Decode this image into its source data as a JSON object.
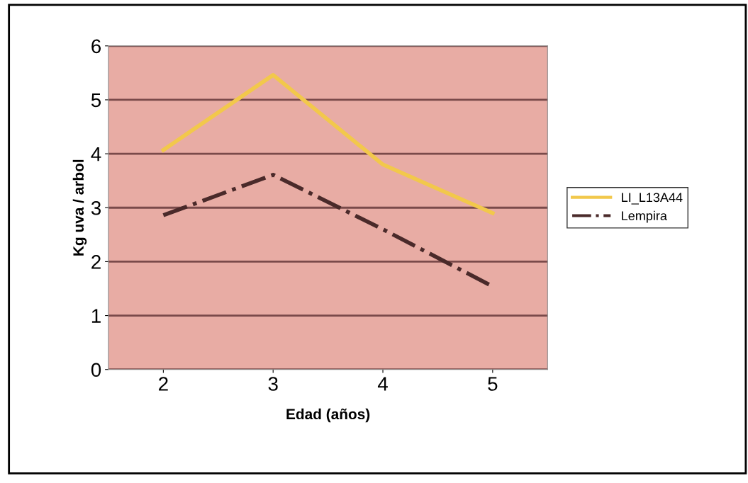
{
  "chart_data": {
    "type": "line",
    "xlabel": "Edad (años)",
    "ylabel": "Kg uva / arbol",
    "categories": [
      "2",
      "3",
      "4",
      "5"
    ],
    "series": [
      {
        "name": "LI_L13A44",
        "color": "#f2c84b",
        "values": [
          4.07,
          5.46,
          3.8,
          2.9
        ],
        "line_style": "solid"
      },
      {
        "name": "Lempira",
        "color": "#4a2a2a",
        "values": [
          2.86,
          3.61,
          2.6,
          1.54
        ],
        "line_style": "dashdot"
      }
    ],
    "ylim": [
      0,
      6
    ],
    "yticks": [
      0,
      1,
      2,
      3,
      4,
      5,
      6
    ],
    "grid": "y",
    "legend": "right",
    "marker": "none"
  }
}
